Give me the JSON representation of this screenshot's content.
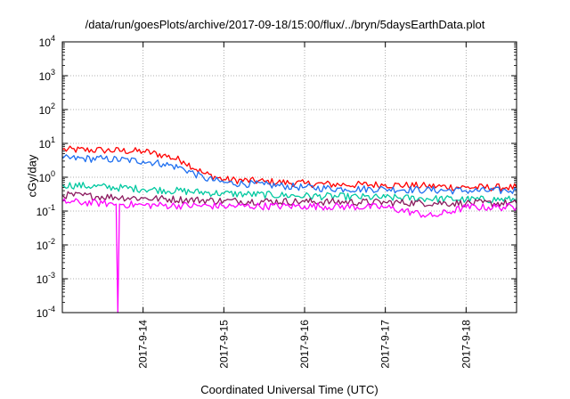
{
  "chart_data": {
    "type": "line",
    "title": "/data/run/goesPlots/archive/2017-09-18/15:00/flux/../bryn/5daysEarthData.plot",
    "xlabel": "Coordinated Universal Time (UTC)",
    "ylabel": "cGy/day",
    "yscale": "log",
    "ylim": [
      0.0001,
      10000
    ],
    "y_ticks": [
      {
        "base": "10",
        "exp": "4"
      },
      {
        "base": "10",
        "exp": "3"
      },
      {
        "base": "10",
        "exp": "2"
      },
      {
        "base": "10",
        "exp": "1"
      },
      {
        "base": "10",
        "exp": "0"
      },
      {
        "base": "10",
        "exp": "-1"
      },
      {
        "base": "10",
        "exp": "-2"
      },
      {
        "base": "10",
        "exp": "-3"
      },
      {
        "base": "10",
        "exp": "-4"
      }
    ],
    "xlim": [
      "2017-09-13 00:00",
      "2017-09-18 15:00"
    ],
    "x_ticks": [
      "2017-9-14",
      "2017-9-15",
      "2017-9-16",
      "2017-9-17",
      "2017-9-18"
    ],
    "grid": true,
    "series": [
      {
        "color": "#ff0000",
        "x": [
          "2017-09-13 00:00",
          "2017-09-13 12:00",
          "2017-09-14 00:00",
          "2017-09-14 06:00",
          "2017-09-14 12:00",
          "2017-09-14 18:00",
          "2017-09-15 00:00",
          "2017-09-15 12:00",
          "2017-09-16 00:00",
          "2017-09-16 12:00",
          "2017-09-17 00:00",
          "2017-09-17 12:00",
          "2017-09-18 00:00",
          "2017-09-18 12:00",
          "2017-09-18 15:00"
        ],
        "values": [
          6.5,
          6.3,
          5.8,
          4.5,
          3.0,
          1.3,
          0.85,
          0.75,
          0.65,
          0.6,
          0.6,
          0.55,
          0.5,
          0.5,
          0.5
        ]
      },
      {
        "color": "#1e6ff0",
        "x": [
          "2017-09-13 00:00",
          "2017-09-13 12:00",
          "2017-09-14 00:00",
          "2017-09-14 06:00",
          "2017-09-14 12:00",
          "2017-09-14 18:00",
          "2017-09-15 00:00",
          "2017-09-15 12:00",
          "2017-09-16 00:00",
          "2017-09-16 12:00",
          "2017-09-17 00:00",
          "2017-09-17 12:00",
          "2017-09-18 00:00",
          "2017-09-18 12:00",
          "2017-09-18 15:00"
        ],
        "values": [
          3.6,
          3.5,
          3.0,
          2.5,
          1.8,
          0.95,
          0.7,
          0.6,
          0.5,
          0.45,
          0.45,
          0.42,
          0.4,
          0.4,
          0.4
        ]
      },
      {
        "color": "#00c8a0",
        "x": [
          "2017-09-13 00:00",
          "2017-09-14 00:00",
          "2017-09-15 00:00",
          "2017-09-16 00:00",
          "2017-09-17 00:00",
          "2017-09-18 00:00",
          "2017-09-18 15:00"
        ],
        "values": [
          0.6,
          0.45,
          0.33,
          0.28,
          0.25,
          0.22,
          0.22
        ]
      },
      {
        "color": "#8b1a5e",
        "x": [
          "2017-09-13 00:00",
          "2017-09-14 00:00",
          "2017-09-15 00:00",
          "2017-09-16 00:00",
          "2017-09-17 00:00",
          "2017-09-18 00:00",
          "2017-09-18 15:00"
        ],
        "values": [
          0.3,
          0.24,
          0.2,
          0.19,
          0.18,
          0.17,
          0.17
        ]
      },
      {
        "color": "#ff00ff",
        "x": [
          "2017-09-13 00:00",
          "2017-09-13 12:00",
          "2017-09-13 16:00",
          "2017-09-13 16:30",
          "2017-09-13 17:00",
          "2017-09-14 00:00",
          "2017-09-15 00:00",
          "2017-09-16 00:00",
          "2017-09-17 00:00",
          "2017-09-17 14:00",
          "2017-09-18 00:00",
          "2017-09-18 15:00"
        ],
        "values": [
          0.19,
          0.17,
          0.16,
          0.0001,
          0.16,
          0.15,
          0.14,
          0.14,
          0.13,
          0.07,
          0.13,
          0.13
        ]
      }
    ]
  }
}
